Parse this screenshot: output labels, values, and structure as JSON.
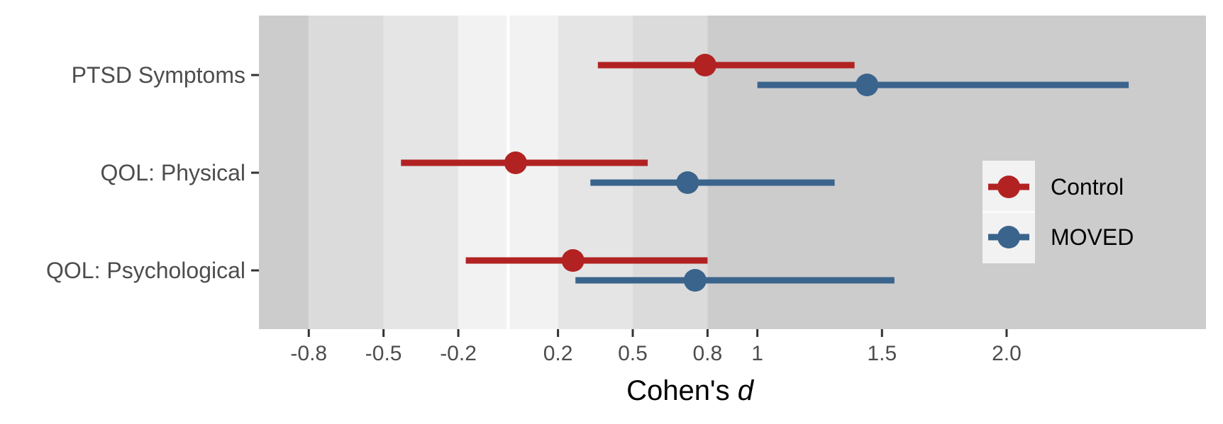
{
  "chart_data": {
    "type": "forest",
    "xlabel_prefix": "Cohen's ",
    "xlabel_italic": "d",
    "xlim": [
      -1.0,
      2.8
    ],
    "x_ticks": [
      {
        "value": -0.8,
        "label": "-0.8"
      },
      {
        "value": -0.5,
        "label": "-0.5"
      },
      {
        "value": -0.2,
        "label": "-0.2"
      },
      {
        "value": 0.2,
        "label": "0.2"
      },
      {
        "value": 0.5,
        "label": "0.5"
      },
      {
        "value": 0.8,
        "label": "0.8"
      },
      {
        "value": 1.0,
        "label": "1"
      },
      {
        "value": 1.5,
        "label": "1.5"
      },
      {
        "value": 2.0,
        "label": "2.0"
      }
    ],
    "background_bands": [
      {
        "from": -1.0,
        "to": -0.8,
        "color": "#cccccc"
      },
      {
        "from": -0.8,
        "to": -0.5,
        "color": "#dbdbdb"
      },
      {
        "from": -0.5,
        "to": -0.2,
        "color": "#e5e5e5"
      },
      {
        "from": -0.2,
        "to": 0.0,
        "color": "#f2f2f2"
      },
      {
        "from": 0.0,
        "to": 0.2,
        "color": "#f2f2f2"
      },
      {
        "from": 0.2,
        "to": 0.5,
        "color": "#e5e5e5"
      },
      {
        "from": 0.5,
        "to": 0.8,
        "color": "#dbdbdb"
      },
      {
        "from": 0.8,
        "to": 2.8,
        "color": "#cccccc"
      }
    ],
    "zero_line": 0.0,
    "categories": [
      "PTSD Symptoms",
      "QOL: Physical",
      "QOL: Psychological"
    ],
    "series": [
      {
        "name": "Control",
        "color": "#b22222",
        "estimates": [
          0.79,
          0.03,
          0.26
        ],
        "lower": [
          0.36,
          -0.43,
          -0.17
        ],
        "upper": [
          1.39,
          0.56,
          0.8
        ]
      },
      {
        "name": "MOVED",
        "color": "#3a648c",
        "estimates": [
          1.44,
          0.72,
          0.75
        ],
        "lower": [
          1.0,
          0.33,
          0.27
        ],
        "upper": [
          2.49,
          1.31,
          1.55
        ]
      }
    ],
    "legend_position": "right"
  }
}
